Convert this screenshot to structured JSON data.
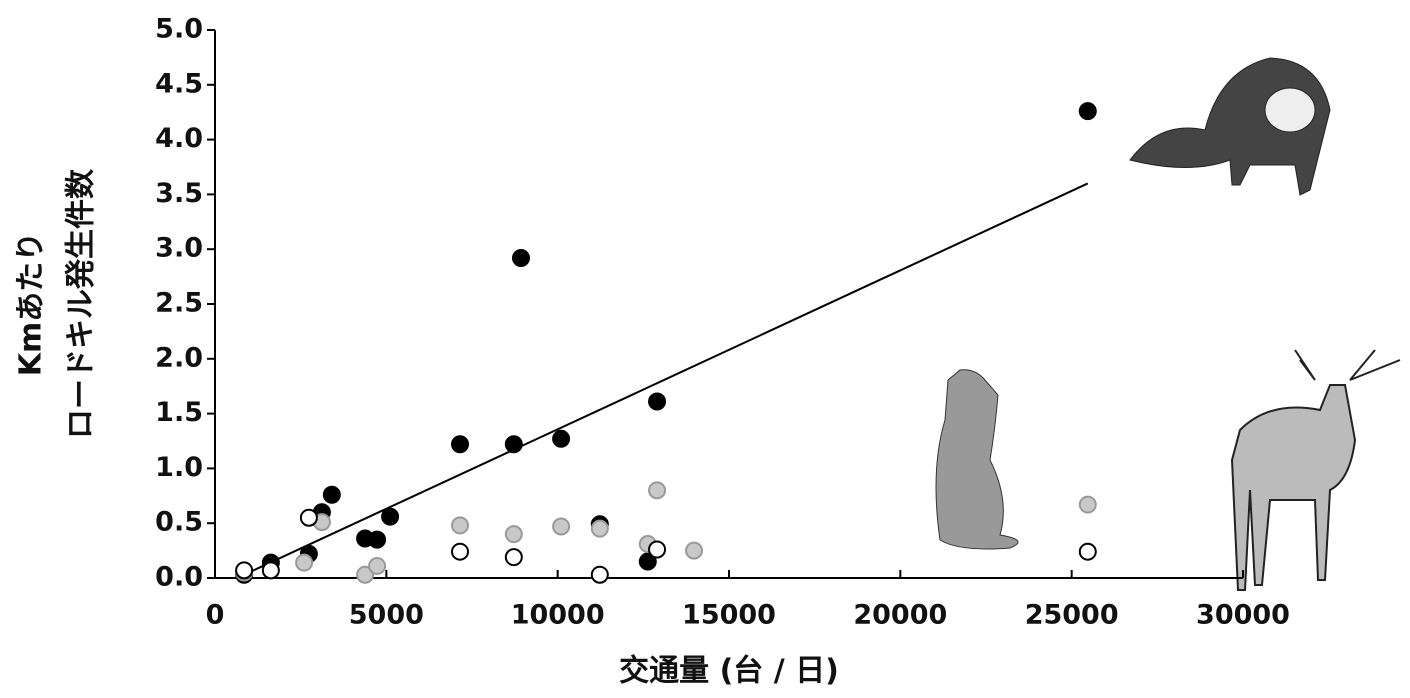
{
  "chart_data": {
    "type": "scatter",
    "x_label": "交通量 (台 / 日)",
    "y_label": [
      "Kmあたり",
      "ロードキル発生件数"
    ],
    "xlim": [
      0,
      30000
    ],
    "xticks": [
      0,
      5000,
      10000,
      15000,
      20000,
      25000,
      30000
    ],
    "ylim": [
      0,
      5
    ],
    "yticks": [
      {
        "value": 0,
        "label": "0.0"
      },
      0.5,
      {
        "value": 1,
        "label": "1.0"
      },
      1.5,
      {
        "value": 2,
        "label": "2.0"
      },
      2.5,
      {
        "value": 3,
        "label": "3.0"
      },
      3.5,
      {
        "value": 4,
        "label": "4.0"
      },
      4.5,
      {
        "value": 5,
        "label": "5.0"
      }
    ],
    "series": [
      {
        "color": "#000000",
        "edge": "#000000",
        "x": [
          850,
          1630,
          2740,
          3120,
          3410,
          4380,
          4730,
          5110,
          7150,
          8720,
          8930,
          10100,
          11230,
          12630,
          12900,
          25470
        ],
        "values": [
          0.03,
          0.14,
          0.22,
          0.6,
          0.76,
          0.36,
          0.35,
          0.56,
          1.22,
          1.22,
          2.92,
          1.27,
          0.49,
          0.15,
          1.61,
          4.26
        ]
      },
      {
        "color": "#c8c8c8",
        "edge": "#999999",
        "x": [
          850,
          2600,
          3120,
          4380,
          4730,
          7150,
          8720,
          10100,
          11230,
          12630,
          12900,
          13980,
          25470
        ],
        "values": [
          0.05,
          0.14,
          0.51,
          0.03,
          0.11,
          0.48,
          0.4,
          0.47,
          0.45,
          0.31,
          0.8,
          0.25,
          0.67
        ]
      },
      {
        "color": "#ffffff",
        "edge": "#000000",
        "x": [
          850,
          1630,
          2740,
          7150,
          8720,
          11230,
          12900,
          25470
        ],
        "values": [
          0.07,
          0.07,
          0.55,
          0.24,
          0.19,
          0.03,
          0.26,
          0.24
        ]
      }
    ],
    "trendline": {
      "x": [
        850,
        25470
      ],
      "values": [
        0.03,
        3.6
      ]
    }
  }
}
